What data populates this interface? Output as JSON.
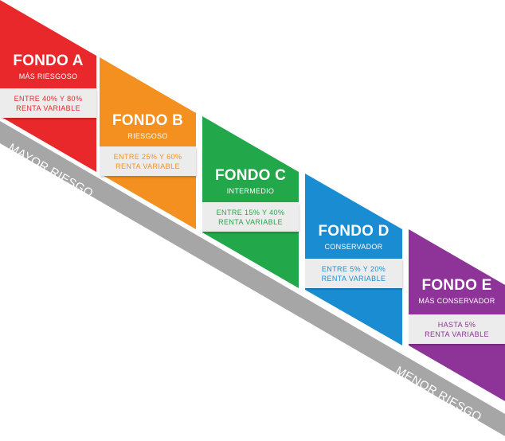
{
  "funds": [
    {
      "title": "FONDO A",
      "subtitle": "MÁS RIESGOSO",
      "range": "ENTRE 40% Y 80%",
      "type": "RENTA VARIABLE",
      "color": "#e8282b"
    },
    {
      "title": "FONDO B",
      "subtitle": "RIESGOSO",
      "range": "ENTRE 25% Y 60%",
      "type": "RENTA VARIABLE",
      "color": "#f3901f"
    },
    {
      "title": "FONDO C",
      "subtitle": "INTERMEDIO",
      "range": "ENTRE 15% Y 40%",
      "type": "RENTA VARIABLE",
      "color": "#22a84a"
    },
    {
      "title": "FONDO D",
      "subtitle": "CONSERVADOR",
      "range": "ENTRE 5% Y 20%",
      "type": "RENTA VARIABLE",
      "color": "#1a8dd2"
    },
    {
      "title": "FONDO E",
      "subtitle": "MÁS CONSERVADOR",
      "range": "HASTA 5%",
      "type": "RENTA VARIABLE",
      "color": "#8e3398"
    }
  ],
  "axis": {
    "start_label": "MAYOR RIESGO",
    "end_label": "MENOR RIESGO",
    "color": "#a6a6a6"
  }
}
